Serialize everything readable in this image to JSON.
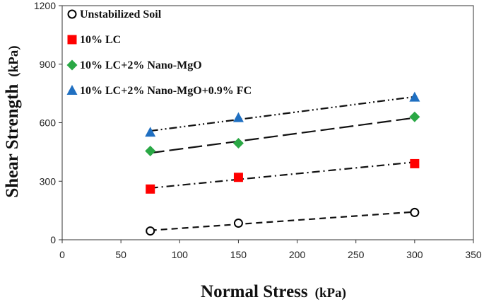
{
  "chart_data": {
    "type": "scatter",
    "xlabel": "Normal Stress",
    "xlabel_unit": "(kPa)",
    "ylabel": "Shear Strength",
    "ylabel_unit": "(kPa)",
    "xlim": [
      0,
      350
    ],
    "ylim": [
      0,
      1200
    ],
    "xticks": [
      0,
      50,
      100,
      150,
      200,
      250,
      300,
      350
    ],
    "yticks": [
      0,
      300,
      600,
      900,
      1200
    ],
    "grid": false,
    "legend_position": "top-left",
    "series": [
      {
        "name": "Unstabilized Soil",
        "marker": "circle-open",
        "color": "#000000",
        "line": "dashed",
        "x": [
          75,
          150,
          300
        ],
        "y": [
          45,
          85,
          140
        ],
        "fit": [
          [
            75,
            48
          ],
          [
            300,
            143
          ]
        ]
      },
      {
        "name": "10% LC",
        "marker": "square",
        "color": "#ff0000",
        "line": "dash-dot",
        "x": [
          75,
          150,
          300
        ],
        "y": [
          260,
          320,
          390
        ],
        "fit": [
          [
            75,
            265
          ],
          [
            300,
            398
          ]
        ]
      },
      {
        "name": "10% LC+2% Nano-MgO",
        "marker": "diamond",
        "color": "#2aa845",
        "line": "long-dash",
        "x": [
          75,
          150,
          300
        ],
        "y": [
          455,
          495,
          630
        ],
        "fit": [
          [
            75,
            445
          ],
          [
            300,
            625
          ]
        ]
      },
      {
        "name": "10% LC+2% Nano-MgO+0.9% FC",
        "marker": "triangle",
        "color": "#1f6fc1",
        "line": "dash-dot-dot",
        "x": [
          75,
          150,
          300
        ],
        "y": [
          550,
          625,
          730
        ],
        "fit": [
          [
            75,
            558
          ],
          [
            300,
            733
          ]
        ]
      }
    ]
  }
}
